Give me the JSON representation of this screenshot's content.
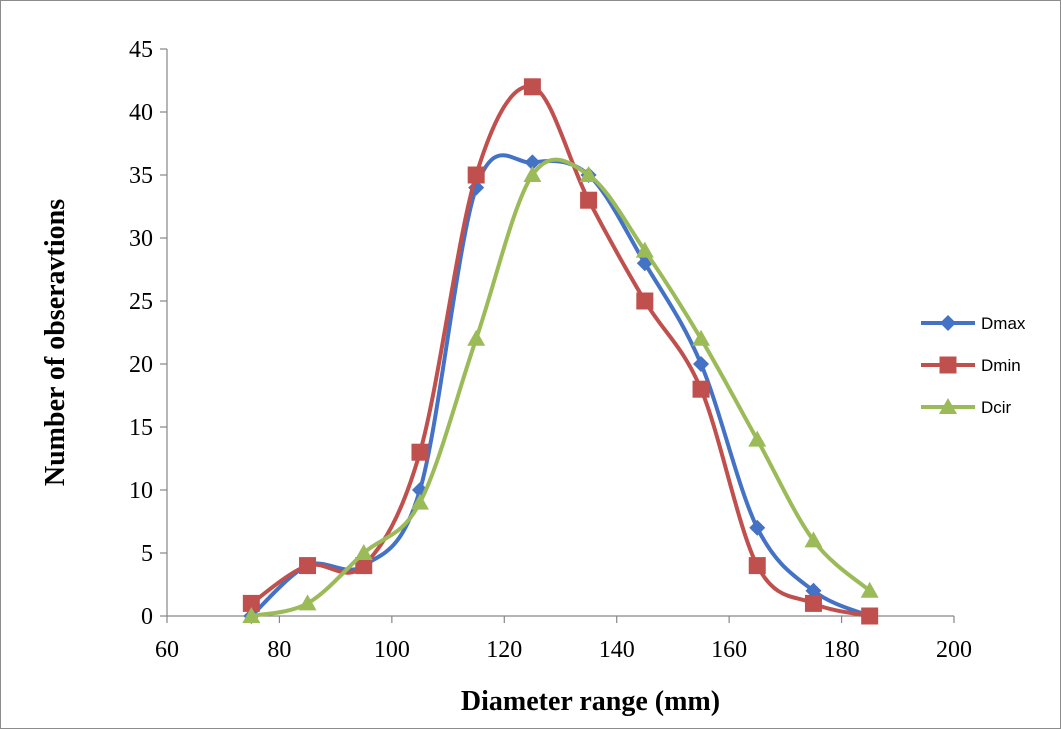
{
  "chart_data": {
    "type": "line",
    "xlabel": "Diameter range (mm)",
    "ylabel": "Number of obseravtions",
    "xlim": [
      60,
      200
    ],
    "ylim": [
      0,
      45
    ],
    "xticks": [
      60,
      80,
      100,
      120,
      140,
      160,
      180,
      200
    ],
    "yticks": [
      0,
      5,
      10,
      15,
      20,
      25,
      30,
      35,
      40,
      45
    ],
    "grid": false,
    "smooth": true,
    "legend_position": "right",
    "x": [
      75,
      85,
      95,
      105,
      115,
      125,
      135,
      145,
      155,
      165,
      175,
      185
    ],
    "series": [
      {
        "name": "Dmax",
        "color": "#4472C4",
        "marker": "diamond",
        "values": [
          0,
          4,
          4,
          10,
          34,
          36,
          35,
          28,
          20,
          7,
          2,
          0
        ]
      },
      {
        "name": "Dmin",
        "color": "#C0504D",
        "marker": "square",
        "values": [
          1,
          4,
          4,
          13,
          35,
          42,
          33,
          25,
          18,
          4,
          1,
          0
        ]
      },
      {
        "name": "Dcir",
        "color": "#9BBB59",
        "marker": "triangle",
        "values": [
          0,
          1,
          5,
          9,
          22,
          35,
          35,
          29,
          22,
          14,
          6,
          2
        ]
      }
    ]
  }
}
